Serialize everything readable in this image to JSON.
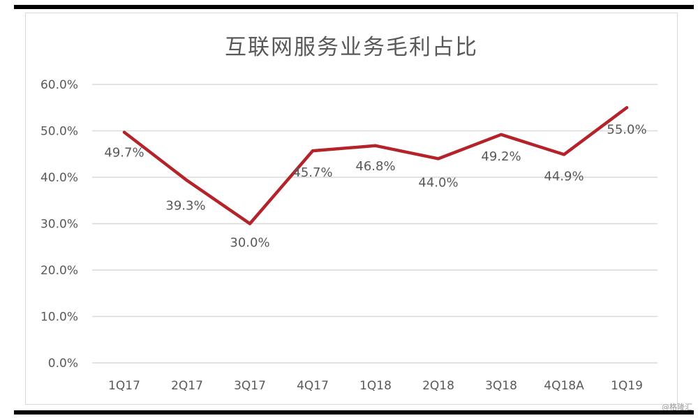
{
  "chart_data": {
    "type": "line",
    "title": "互联网服务业务毛利占比",
    "categories": [
      "1Q17",
      "2Q17",
      "3Q17",
      "4Q17",
      "1Q18",
      "2Q18",
      "3Q18",
      "4Q18A",
      "1Q19"
    ],
    "series": [
      {
        "values": [
          49.7,
          39.3,
          30.0,
          45.7,
          46.8,
          44.0,
          49.2,
          44.9,
          55.0
        ],
        "data_labels": [
          "49.7%",
          "39.3%",
          "30.0%",
          "45.7%",
          "46.8%",
          "44.0%",
          "49.2%",
          "44.9%",
          "55.0%"
        ]
      }
    ],
    "y_ticks": [
      "0.0%",
      "10.0%",
      "20.0%",
      "30.0%",
      "40.0%",
      "50.0%",
      "60.0%"
    ],
    "ylim": [
      0,
      60
    ],
    "xlabel": "",
    "ylabel": "",
    "grid": true,
    "legend": "none",
    "line_color": "#b5232a",
    "grid_color": "#d9d9d9",
    "text_color": "#595959"
  },
  "watermark": "@格隆汇"
}
